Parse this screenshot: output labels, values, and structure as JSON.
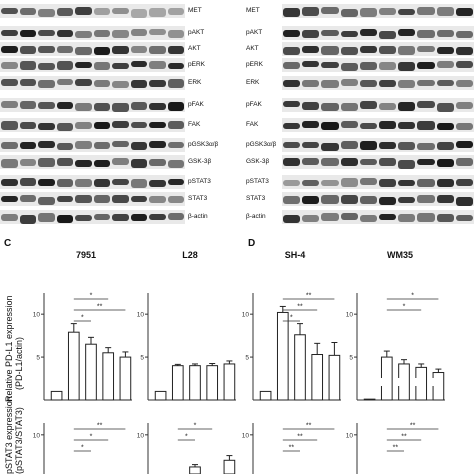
{
  "blot_left": {
    "labels": [
      "MET",
      "pAKT",
      "AKT",
      "pERK",
      "ERK",
      "pFAK",
      "FAK",
      "pGSK3α/β",
      "GSK-3β",
      "pSTAT3",
      "STAT3",
      "β-actin"
    ]
  },
  "blot_right": {
    "labels": [
      "MET",
      "pAKT",
      "AKT",
      "pERK",
      "ERK",
      "pFAK",
      "FAK",
      "pGSK3α/β",
      "GSK-3β",
      "pSTAT3",
      "STAT3",
      "β-actin"
    ]
  },
  "panel_c": {
    "letter": "C",
    "titles": [
      "7951",
      "L28"
    ]
  },
  "panel_d": {
    "letter": "D",
    "titles": [
      "SH-4",
      "WM35"
    ]
  },
  "y_axis": {
    "top_label_line1": "Relative PD-L1 expression",
    "top_label_line2": "(PD-L1/actin)",
    "bottom_label": "pSTAT3 expression",
    "bottom_label_line2": "(pSTAT3/STAT3)"
  },
  "chart_data": [
    {
      "type": "bar",
      "title": "7951",
      "ylim": [
        0,
        12
      ],
      "yticks": [
        5,
        10
      ],
      "values": [
        1.0,
        7.9,
        6.5,
        5.5,
        5.0
      ],
      "errors": [
        0,
        1.0,
        0.8,
        0.6,
        0.6
      ],
      "significance": [
        {
          "from": 1,
          "to": 3,
          "label": "*"
        },
        {
          "from": 1,
          "to": 4,
          "label": "**"
        },
        {
          "from": 1,
          "to": 2,
          "label": "*"
        }
      ]
    },
    {
      "type": "bar",
      "title": "L28",
      "ylim": [
        0,
        12
      ],
      "yticks": [
        5,
        10
      ],
      "values": [
        1.0,
        4.0,
        4.0,
        4.0,
        4.2
      ],
      "errors": [
        0,
        0.15,
        0.2,
        0.25,
        0.35
      ],
      "significance": []
    },
    {
      "type": "bar",
      "title": "SH-4",
      "ylim": [
        0,
        12
      ],
      "yticks": [
        5,
        10
      ],
      "values": [
        1.0,
        10.2,
        7.6,
        5.3,
        5.2
      ],
      "errors": [
        0,
        0.7,
        1.3,
        1.3,
        1.5
      ],
      "significance": [
        {
          "from": 1,
          "to": 4,
          "label": "**"
        },
        {
          "from": 1,
          "to": 3,
          "label": "**"
        },
        {
          "from": 1,
          "to": 2,
          "label": "*"
        }
      ]
    },
    {
      "type": "bar",
      "title": "WM35",
      "ylim": [
        0,
        12
      ],
      "yticks": [
        5,
        10
      ],
      "axis_break": true,
      "values": [
        0.1,
        5.0,
        4.2,
        3.8,
        3.2
      ],
      "errors": [
        0,
        0.7,
        0.5,
        0.4,
        0.4
      ],
      "significance": [
        {
          "from": 1,
          "to": 4,
          "label": "*"
        },
        {
          "from": 1,
          "to": 3,
          "label": "*"
        }
      ]
    },
    {
      "type": "bar",
      "title": "",
      "ylim": [
        0,
        12
      ],
      "yticks": [
        10
      ],
      "values": [
        0,
        0,
        0,
        0,
        0
      ],
      "errors": [
        0,
        0,
        0,
        0,
        0
      ],
      "significance": [
        {
          "from": 1,
          "to": 4,
          "label": "**"
        },
        {
          "from": 1,
          "to": 3,
          "label": "*"
        },
        {
          "from": 1,
          "to": 2,
          "label": "*"
        }
      ]
    },
    {
      "type": "bar",
      "title": "",
      "ylim": [
        0,
        12
      ],
      "yticks": [
        10
      ],
      "values": [
        0,
        0,
        1.8,
        0,
        3.5
      ],
      "errors": [
        0,
        0,
        0.6,
        0,
        1.2
      ],
      "significance": [
        {
          "from": 1,
          "to": 3,
          "label": "*"
        },
        {
          "from": 1,
          "to": 2,
          "label": "*"
        }
      ]
    },
    {
      "type": "bar",
      "title": "",
      "ylim": [
        0,
        12
      ],
      "yticks": [
        10
      ],
      "values": [
        0,
        0,
        0,
        0,
        0
      ],
      "errors": [
        0,
        0,
        0,
        0,
        0
      ],
      "significance": [
        {
          "from": 1,
          "to": 4,
          "label": "**"
        },
        {
          "from": 1,
          "to": 3,
          "label": "**"
        },
        {
          "from": 1,
          "to": 2,
          "label": "**"
        }
      ]
    },
    {
      "type": "bar",
      "title": "",
      "ylim": [
        0,
        12
      ],
      "yticks": [
        10
      ],
      "values": [
        0,
        0,
        0,
        0,
        0
      ],
      "errors": [
        0,
        0,
        0,
        0,
        0
      ],
      "significance": [
        {
          "from": 1,
          "to": 4,
          "label": "**"
        },
        {
          "from": 1,
          "to": 3,
          "label": "**"
        },
        {
          "from": 1,
          "to": 2,
          "label": "**"
        }
      ]
    }
  ]
}
